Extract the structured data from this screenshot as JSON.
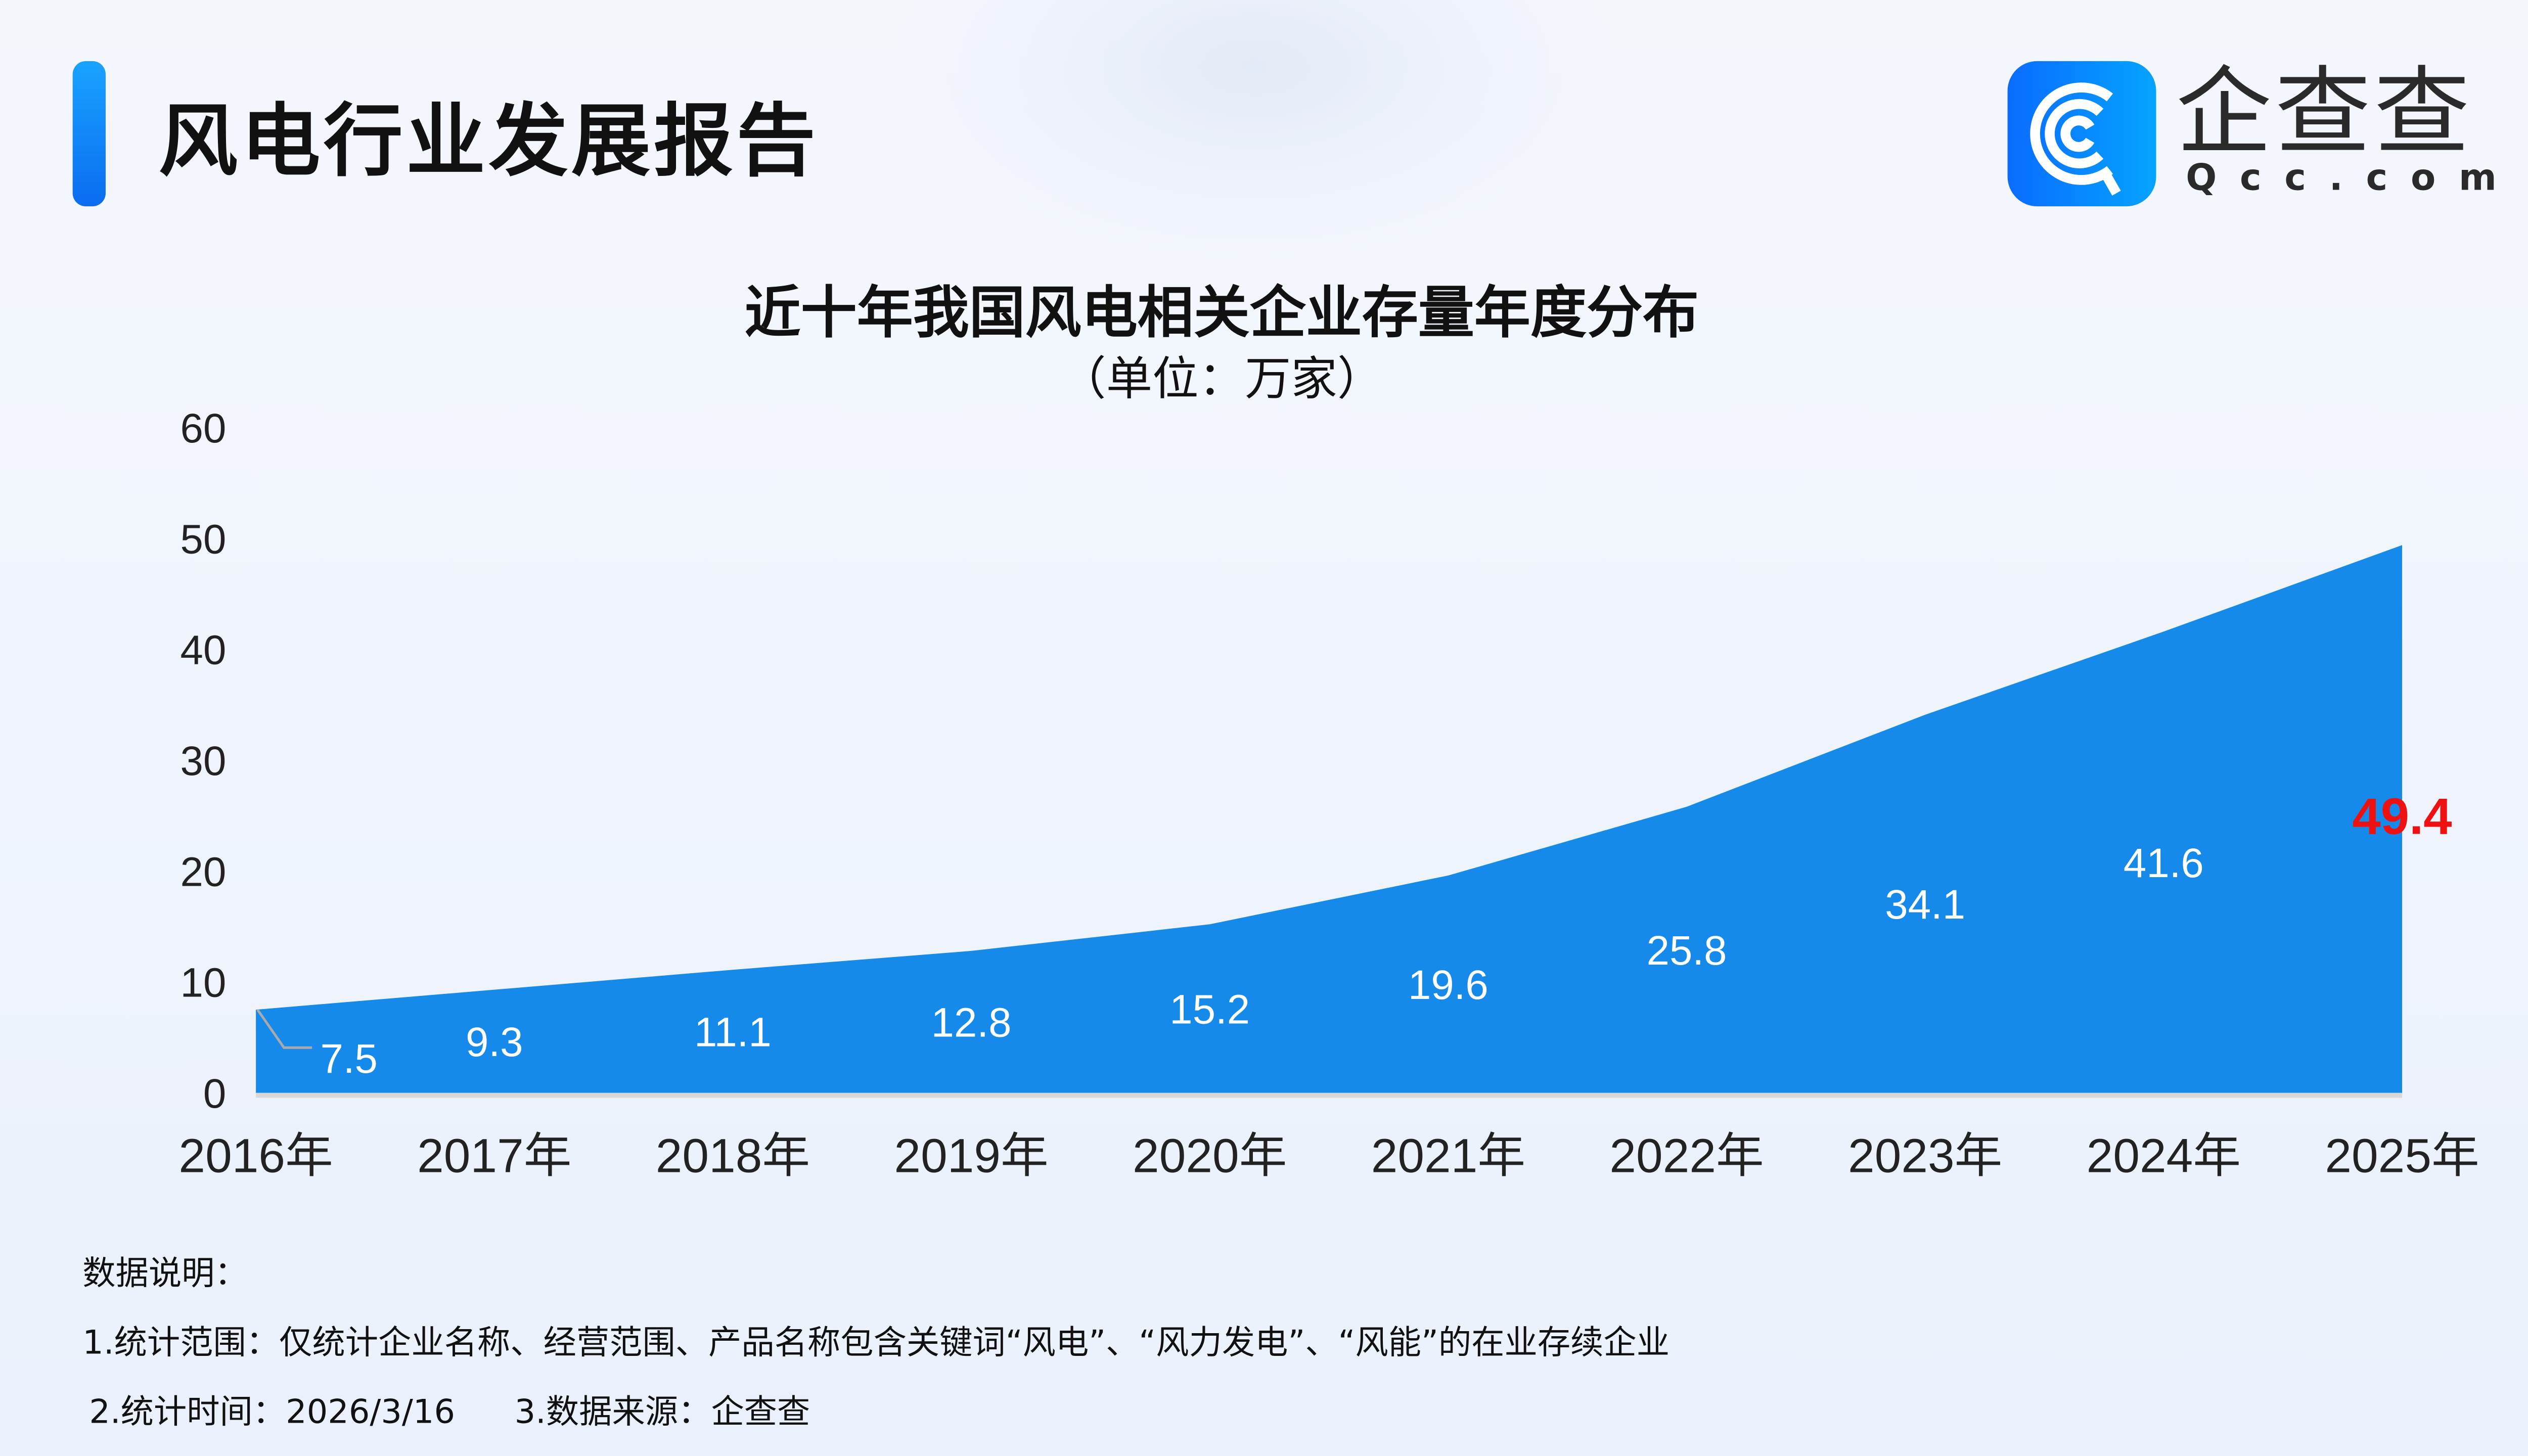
{
  "header": {
    "title": "风电行业发展报告",
    "logo_cn": "企查查",
    "logo_en": "Qcc.com"
  },
  "chart_data": {
    "type": "area",
    "title": "近十年我国风电相关企业存量年度分布",
    "subtitle": "（单位：万家）",
    "categories": [
      "2016年",
      "2017年",
      "2018年",
      "2019年",
      "2020年",
      "2021年",
      "2022年",
      "2023年",
      "2024年",
      "2025年"
    ],
    "values": [
      7.5,
      9.3,
      11.1,
      12.8,
      15.2,
      19.6,
      25.8,
      34.1,
      41.6,
      49.4
    ],
    "ylim": [
      0,
      60
    ],
    "yticks": [
      0,
      10,
      20,
      30,
      40,
      50,
      60
    ],
    "grid": false,
    "colors": {
      "area": "#158aea",
      "label": "#ffffff",
      "highlight": "#ee1111"
    }
  },
  "notes": {
    "heading": "数据说明：",
    "line1": "1.统计范围：仅统计企业名称、经营范围、产品名称包含关键词“风电”、“风力发电”、“风能”的在业存续企业",
    "line2": "2.统计时间：2026/3/16",
    "line3": "3.数据来源：企查查"
  }
}
